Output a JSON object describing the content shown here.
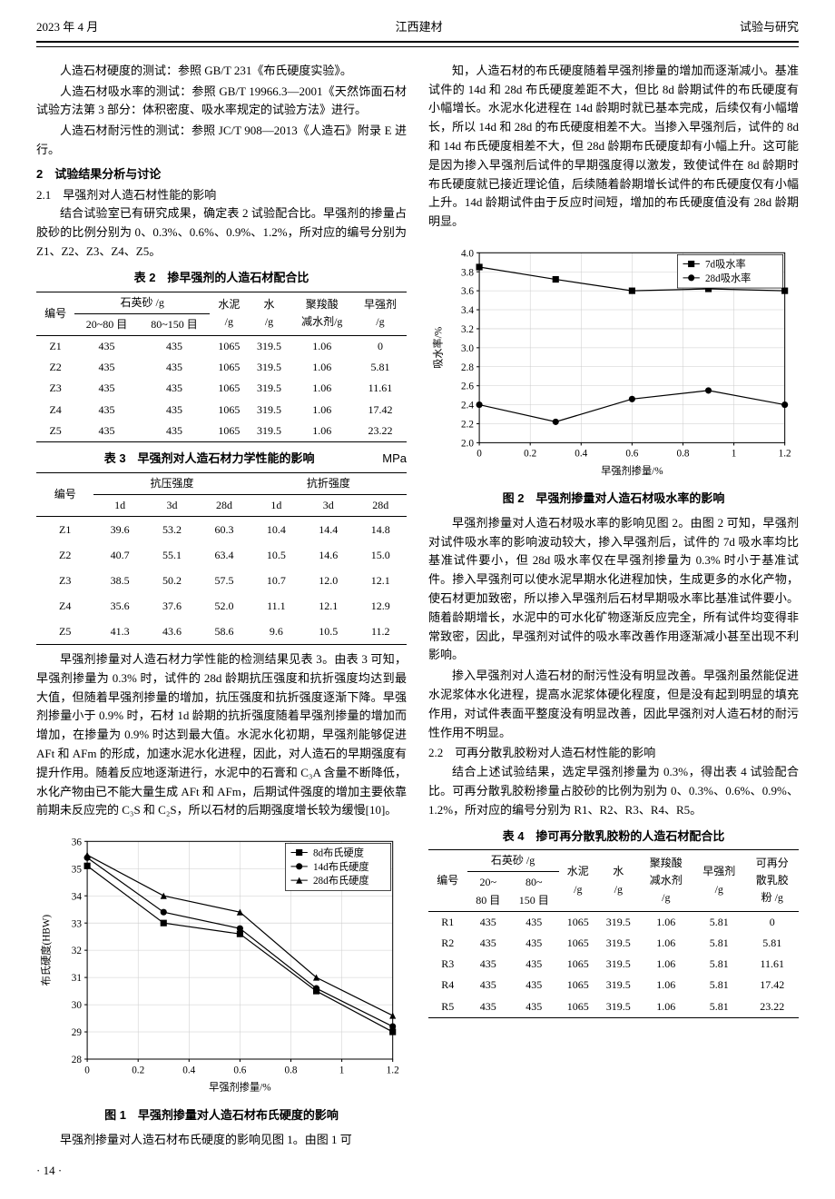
{
  "header": {
    "left": "2023 年 4 月",
    "center": "江西建材",
    "right": "试验与研究"
  },
  "left_column": {
    "para1": "人造石材硬度的测试：参照 GB/T 231《布氏硬度实验》。",
    "para2": "人造石材吸水率的测试：参照 GB/T 19966.3—2001《天然饰面石材试验方法第 3 部分：体积密度、吸水率规定的试验方法》进行。",
    "para3": "人造石材耐污性的测试：参照 JC/T 908—2013《人造石》附录 E 进行。",
    "sec2_title": "2　试验结果分析与讨论",
    "sec21_title": "2.1　早强剂对人造石材性能的影响",
    "para4": "结合试验室已有研究成果，确定表 2 试验配合比。早强剂的掺量占胶砂的比例分别为 0、0.3%、0.6%、0.9%、1.2%，所对应的编号分别为 Z1、Z2、Z3、Z4、Z5。",
    "para5": "早强剂掺量对人造石材力学性能的检测结果见表 3。由表 3 可知，早强剂掺量为 0.3% 时，试件的 28d 龄期抗压强度和抗折强度均达到最大值，但随着早强剂掺量的增加，抗压强度和抗折强度逐渐下降。早强剂掺量小于 0.9% 时，石材 1d 龄期的抗折强度随着早强剂掺量的增加而增加，在掺量为 0.9% 时达到最大值。水泥水化初期，早强剂能够促进 AFt 和 AFm 的形成，加速水泥水化进程，因此，对人造石的早期强度有提升作用。随着反应地逐渐进行，水泥中的石膏和 C₃A 含量不断降低，水化产物由已不能大量生成 AFt 和 AFm，后期试件强度的增加主要依靠前期未反应完的 C₃S 和 C₂S，所以石材的后期强度增长较为缓慢[10]。",
    "para6": "早强剂掺量对人造石材布氏硬度的影响见图 1。由图 1 可"
  },
  "right_column": {
    "para1": "知，人造石材的布氏硬度随着早强剂掺量的增加而逐渐减小。基准试件的 14d 和 28d 布氏硬度差距不大，但比 8d 龄期试件的布氏硬度有小幅增长。水泥水化进程在 14d 龄期时就已基本完成，后续仅有小幅增长，所以 14d 和 28d 的布氏硬度相差不大。当掺入早强剂后，试件的 8d 和 14d 布氏硬度相差不大，但 28d 龄期布氏硬度却有小幅上升。这可能是因为掺入早强剂后试件的早期强度得以激发，致使试件在 8d 龄期时布氏硬度就已接近理论值，后续随着龄期增长试件的布氏硬度仅有小幅上升。14d 龄期试件由于反应时间短，增加的布氏硬度值没有 28d 龄期明显。",
    "para2": "早强剂掺量对人造石材吸水率的影响见图 2。由图 2 可知，早强剂对试件吸水率的影响波动较大，掺入早强剂后，试件的 7d 吸水率均比基准试件要小，但 28d 吸水率仅在早强剂掺量为 0.3% 时小于基准试件。掺入早强剂可以使水泥早期水化进程加快，生成更多的水化产物，使石材更加致密，所以掺入早强剂后石材早期吸水率比基准试件要小。随着龄期增长，水泥中的可水化矿物逐渐反应完全，所有试件均变得非常致密，因此，早强剂对试件的吸水率改善作用逐渐减小甚至出现不利影响。",
    "para3": "掺入早强剂对人造石材的耐污性没有明显改善。早强剂虽然能促进水泥浆体水化进程，提高水泥浆体硬化程度，但是没有起到明显的填充作用，对试件表面平整度没有明显改善，因此早强剂对人造石材的耐污性作用不明显。",
    "sec22_title": "2.2　可再分散乳胶粉对人造石材性能的影响",
    "para4": "结合上述试验结果，选定早强剂掺量为 0.3%，得出表 4 试验配合比。可再分散乳胶粉掺量占胶砂的比例为别为 0、0.3%、0.6%、0.9%、1.2%，所对应的编号分别为 R1、R2、R3、R4、R5。"
  },
  "table2": {
    "caption": "表 2　掺早强剂的人造石材配合比",
    "head": {
      "bianhao": "编号",
      "sand_group": "石英砂 /g",
      "sand1": "20~80 目",
      "sand2": "80~150 目",
      "cement": "水泥\n/g",
      "water": "水\n/g",
      "jiansuiji": "聚羧酸\n减水剂/g",
      "zaoqiang": "早强剂\n/g"
    },
    "rows": [
      [
        "Z1",
        "435",
        "435",
        "1065",
        "319.5",
        "1.06",
        "0"
      ],
      [
        "Z2",
        "435",
        "435",
        "1065",
        "319.5",
        "1.06",
        "5.81"
      ],
      [
        "Z3",
        "435",
        "435",
        "1065",
        "319.5",
        "1.06",
        "11.61"
      ],
      [
        "Z4",
        "435",
        "435",
        "1065",
        "319.5",
        "1.06",
        "17.42"
      ],
      [
        "Z5",
        "435",
        "435",
        "1065",
        "319.5",
        "1.06",
        "23.22"
      ]
    ]
  },
  "table3": {
    "caption": "表 3　早强剂对人造石材力学性能的影响",
    "unit": "MPa",
    "head": {
      "bianhao": "编号",
      "kangyajiao_group": "抗压强度",
      "kangzhe_group": "抗折强度",
      "d1": "1d",
      "d3": "3d",
      "d28": "28d"
    },
    "rows": [
      [
        "Z1",
        "39.6",
        "53.2",
        "60.3",
        "10.4",
        "14.4",
        "14.8"
      ],
      [
        "Z2",
        "40.7",
        "55.1",
        "63.4",
        "10.5",
        "14.6",
        "15.0"
      ],
      [
        "Z3",
        "38.5",
        "50.2",
        "57.5",
        "10.7",
        "12.0",
        "12.1"
      ],
      [
        "Z4",
        "35.6",
        "37.6",
        "52.0",
        "11.1",
        "12.1",
        "12.9"
      ],
      [
        "Z5",
        "41.3",
        "43.6",
        "58.6",
        "9.6",
        "10.5",
        "11.2"
      ]
    ]
  },
  "table4": {
    "caption": "表 4　掺可再分散乳胶粉的人造石材配合比",
    "head": {
      "bianhao": "编号",
      "sand_group": "石英砂 /g",
      "sand1": "20~\n80 目",
      "sand2": "80~\n150 目",
      "cement": "水泥\n/g",
      "water": "水\n/g",
      "jiansuiji": "聚羧酸\n减水剂\n/g",
      "zaoqiang": "早强剂\n/g",
      "rufen": "可再分\n散乳胶\n粉 /g"
    },
    "rows": [
      [
        "R1",
        "435",
        "435",
        "1065",
        "319.5",
        "1.06",
        "5.81",
        "0"
      ],
      [
        "R2",
        "435",
        "435",
        "1065",
        "319.5",
        "1.06",
        "5.81",
        "5.81"
      ],
      [
        "R3",
        "435",
        "435",
        "1065",
        "319.5",
        "1.06",
        "5.81",
        "11.61"
      ],
      [
        "R4",
        "435",
        "435",
        "1065",
        "319.5",
        "1.06",
        "5.81",
        "17.42"
      ],
      [
        "R5",
        "435",
        "435",
        "1065",
        "319.5",
        "1.06",
        "5.81",
        "23.22"
      ]
    ]
  },
  "chart1": {
    "caption": "图 1　早强剂掺量对人造石材布氏硬度的影响",
    "type": "line",
    "x_label": "早强剂掺量/%",
    "y_label": "布氏硬度(HBW)",
    "x_values": [
      0,
      0.2,
      0.4,
      0.6,
      0.8,
      1.0,
      1.2
    ],
    "x_data": [
      0,
      0.3,
      0.6,
      0.9,
      1.2
    ],
    "ylim": [
      28,
      36
    ],
    "ytick_step": 1,
    "series": [
      {
        "name": "8d布氏硬度",
        "marker": "square",
        "color": "#000000",
        "values": [
          35.1,
          33.0,
          32.6,
          30.5,
          29.0
        ]
      },
      {
        "name": "14d布氏硬度",
        "marker": "circle",
        "color": "#000000",
        "values": [
          35.4,
          33.4,
          32.8,
          30.6,
          29.2
        ]
      },
      {
        "name": "28d布氏硬度",
        "marker": "triangle",
        "color": "#000000",
        "values": [
          35.5,
          34.0,
          33.4,
          31.0,
          29.6
        ]
      }
    ],
    "grid_color": "#cccccc",
    "background_color": "#ffffff"
  },
  "chart2": {
    "caption": "图 2　早强剂掺量对人造石材吸水率的影响",
    "type": "line",
    "x_label": "早强剂掺量/%",
    "y_label": "吸水率/%",
    "x_values": [
      0,
      0.2,
      0.4,
      0.6,
      0.8,
      1.0,
      1.2
    ],
    "x_data": [
      0,
      0.3,
      0.6,
      0.9,
      1.2
    ],
    "ylim": [
      2.0,
      4.0
    ],
    "ytick_step": 0.2,
    "series": [
      {
        "name": "7d吸水率",
        "marker": "square",
        "color": "#000000",
        "values": [
          3.85,
          3.72,
          3.6,
          3.62,
          3.6
        ]
      },
      {
        "name": "28d吸水率",
        "marker": "circle",
        "color": "#000000",
        "values": [
          2.4,
          2.22,
          2.46,
          2.55,
          2.4
        ]
      }
    ],
    "grid_color": "#cccccc",
    "background_color": "#ffffff"
  },
  "footer": {
    "page": "· 14 ·"
  }
}
